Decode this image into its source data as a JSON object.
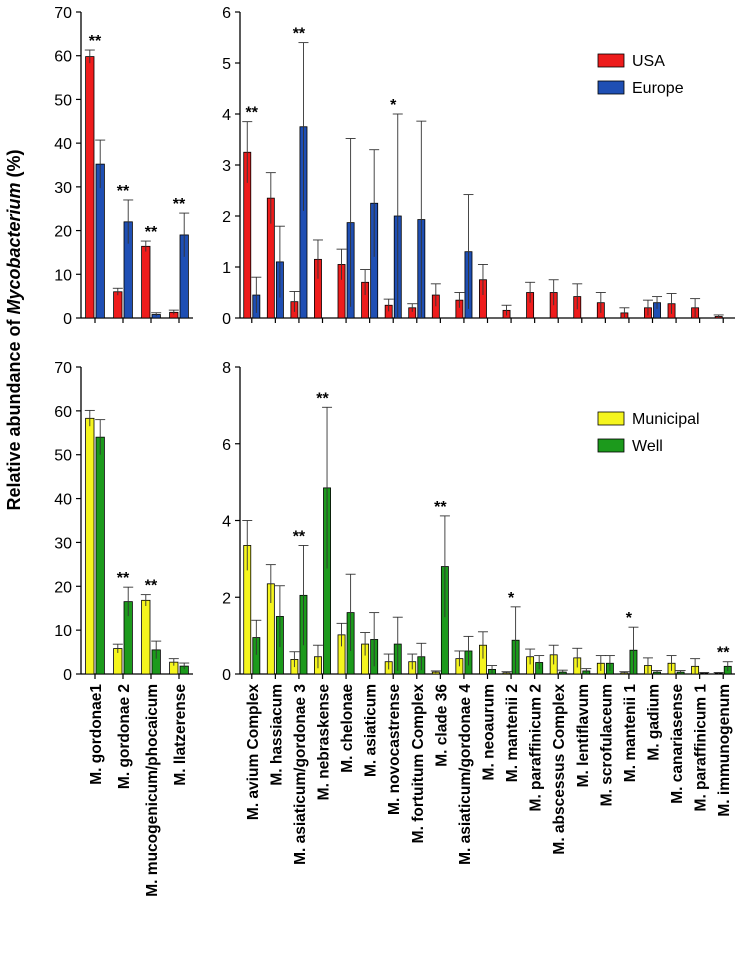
{
  "figure": {
    "ylabel_prefix": "Relative abundance of ",
    "ylabel_italic": "Mycobacterium",
    "ylabel_suffix": " (%)"
  },
  "colors": {
    "USA": "#ee1c1c",
    "Europe": "#1f4fb4",
    "Municipal": "#f5f51e",
    "Well": "#1c9a1c"
  },
  "chart_data": [
    {
      "type": "bar",
      "panel": "top-left",
      "categories": [
        "M. gordonae1",
        "M. gordonae 2",
        "M. mucogenicum/phocaicum",
        "M. llatzerense"
      ],
      "series": [
        {
          "name": "USA",
          "values": [
            59.8,
            6.0,
            16.4,
            1.3
          ],
          "errors": [
            1.5,
            0.8,
            1.2,
            0.5
          ]
        },
        {
          "name": "Europe",
          "values": [
            35.2,
            22.0,
            0.8,
            19.0
          ],
          "errors": [
            5.5,
            5.0,
            0.4,
            5.0
          ]
        }
      ],
      "significance": [
        "**",
        "**",
        "**",
        "**"
      ],
      "ylim": [
        0,
        70
      ],
      "yticks": [
        0,
        10,
        20,
        30,
        40,
        50,
        60,
        70
      ]
    },
    {
      "type": "bar",
      "panel": "top-right",
      "categories": [
        "M. avium Complex",
        "M. hassiacum",
        "M. asiaticum/gordonae 3",
        "M. nebraskense",
        "M. chelonae",
        "M. asiaticum",
        "M. novocastrense",
        "M. fortuitum Complex",
        "M. clade 36",
        "M. asiaticum/gordonae 4",
        "M. neoaurum",
        "M. mantenii 2",
        "M. paraffinicum 2",
        "M. abscessus Complex",
        "M. lentiflavum",
        "M. scrofulaceum",
        "M. mantenii 1",
        "M. gadium",
        "M. canariasense",
        "M. paraffinicum 1",
        "M. immunogenum"
      ],
      "series": [
        {
          "name": "USA",
          "values": [
            3.25,
            2.35,
            0.32,
            1.15,
            1.05,
            0.7,
            0.25,
            0.2,
            0.45,
            0.35,
            0.75,
            0.15,
            0.5,
            0.5,
            0.42,
            0.3,
            0.1,
            0.2,
            0.28,
            0.2,
            0.03
          ],
          "errors": [
            0.6,
            0.5,
            0.2,
            0.38,
            0.3,
            0.25,
            0.12,
            0.08,
            0.22,
            0.15,
            0.3,
            0.1,
            0.2,
            0.25,
            0.25,
            0.2,
            0.1,
            0.15,
            0.2,
            0.18,
            0.03
          ]
        },
        {
          "name": "Europe",
          "values": [
            0.45,
            1.1,
            3.75,
            null,
            1.87,
            2.25,
            2.0,
            1.93,
            null,
            1.3,
            null,
            null,
            null,
            null,
            null,
            null,
            null,
            0.3,
            null,
            null,
            null
          ],
          "errors": [
            0.35,
            0.7,
            1.65,
            null,
            1.65,
            1.05,
            2.0,
            1.93,
            null,
            1.12,
            null,
            null,
            null,
            null,
            null,
            null,
            null,
            0.12,
            null,
            null,
            null
          ]
        }
      ],
      "significance": [
        "**",
        "",
        "**",
        "",
        "",
        "",
        "*",
        "",
        "",
        "",
        "",
        "",
        "",
        "",
        "",
        "",
        "",
        "",
        "",
        "",
        ""
      ],
      "ylim": [
        0,
        6
      ],
      "yticks": [
        0,
        1,
        2,
        3,
        4,
        5,
        6
      ]
    },
    {
      "type": "bar",
      "panel": "bottom-left",
      "categories": [
        "M. gordonae1",
        "M. gordonae 2",
        "M. mucogenicum/phocaicum",
        "M. llatzerense"
      ],
      "series": [
        {
          "name": "Municipal",
          "values": [
            58.3,
            5.8,
            16.8,
            2.7
          ],
          "errors": [
            1.8,
            1.0,
            1.3,
            0.8
          ]
        },
        {
          "name": "Well",
          "values": [
            54.0,
            16.5,
            5.5,
            1.8
          ],
          "errors": [
            4.0,
            3.3,
            2.0,
            0.7
          ]
        }
      ],
      "significance": [
        "",
        "**",
        "**",
        ""
      ],
      "ylim": [
        0,
        70
      ],
      "yticks": [
        0,
        10,
        20,
        30,
        40,
        50,
        60,
        70
      ]
    },
    {
      "type": "bar",
      "panel": "bottom-right",
      "categories": [
        "M. avium Complex",
        "M. hassiacum",
        "M. asiaticum/gordonae 3",
        "M. nebraskense",
        "M. chelonae",
        "M. asiaticum",
        "M. novocastrense",
        "M. fortuitum Complex",
        "M. clade 36",
        "M. asiaticum/gordonae 4",
        "M. neoaurum",
        "M. mantenii 2",
        "M. paraffinicum 2",
        "M. abscessus Complex",
        "M. lentiflavum",
        "M. scrofulaceum",
        "M. mantenii 1",
        "M. gadium",
        "M. canariasense",
        "M. paraffinicum 1",
        "M. immunogenum"
      ],
      "series": [
        {
          "name": "Municipal",
          "values": [
            3.35,
            2.35,
            0.38,
            0.45,
            1.02,
            0.78,
            0.32,
            0.32,
            0.05,
            0.4,
            0.75,
            0.03,
            0.45,
            0.5,
            0.42,
            0.28,
            0.03,
            0.22,
            0.28,
            0.2,
            0.02
          ],
          "errors": [
            0.65,
            0.5,
            0.2,
            0.3,
            0.3,
            0.3,
            0.2,
            0.2,
            0.03,
            0.2,
            0.35,
            0.03,
            0.2,
            0.25,
            0.25,
            0.2,
            0.03,
            0.2,
            0.2,
            0.2,
            0.02
          ]
        },
        {
          "name": "Well",
          "values": [
            0.95,
            1.5,
            2.05,
            4.85,
            1.6,
            0.9,
            0.78,
            0.45,
            2.8,
            0.6,
            0.12,
            0.88,
            0.3,
            0.05,
            0.08,
            0.28,
            0.62,
            0.05,
            0.05,
            0.02,
            0.2
          ],
          "errors": [
            0.45,
            0.8,
            1.3,
            2.1,
            1.0,
            0.7,
            0.7,
            0.35,
            1.32,
            0.38,
            0.1,
            0.87,
            0.18,
            0.05,
            0.06,
            0.2,
            0.6,
            0.04,
            0.04,
            0.02,
            0.12
          ]
        }
      ],
      "significance": [
        "",
        "",
        "**",
        "**",
        "",
        "",
        "",
        "",
        "**",
        "",
        "",
        "*",
        "",
        "",
        "",
        "",
        "*",
        "",
        "",
        "",
        "**"
      ],
      "ylim": [
        0,
        8
      ],
      "yticks": [
        0,
        2,
        4,
        6,
        8
      ]
    }
  ]
}
